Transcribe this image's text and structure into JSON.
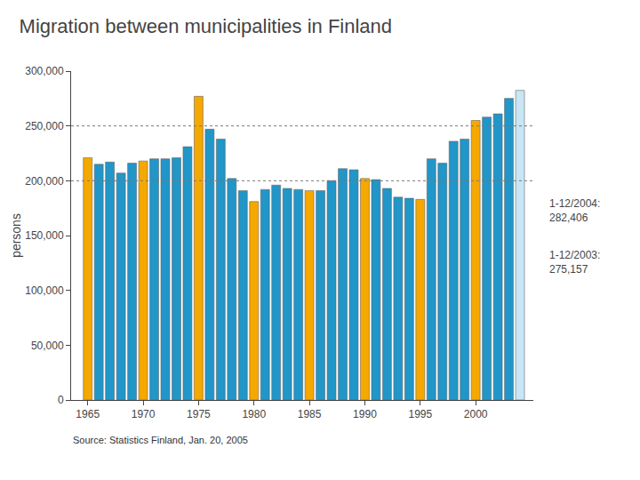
{
  "chart_data": {
    "type": "bar",
    "title": "Migration between municipalities in Finland",
    "ylabel": "persons",
    "source": "Source: Statistics Finland, Jan. 20, 2005",
    "annotations": [
      "1-12/2004:\n282,406",
      "1-12/2003:\n275,157"
    ],
    "x": [
      1965,
      1966,
      1967,
      1968,
      1969,
      1970,
      1971,
      1972,
      1973,
      1974,
      1975,
      1976,
      1977,
      1978,
      1979,
      1980,
      1981,
      1982,
      1983,
      1984,
      1985,
      1986,
      1987,
      1988,
      1989,
      1990,
      1991,
      1992,
      1993,
      1994,
      1995,
      1996,
      1997,
      1998,
      1999,
      2000,
      2001,
      2002,
      2003,
      2004
    ],
    "values": [
      221000,
      215000,
      217000,
      207000,
      216000,
      218000,
      220000,
      220000,
      221000,
      231000,
      277000,
      247000,
      238000,
      202000,
      191000,
      181000,
      192000,
      196000,
      193000,
      192000,
      191000,
      191000,
      200000,
      211000,
      210000,
      202000,
      201000,
      193000,
      185000,
      184000,
      183000,
      220000,
      216000,
      236000,
      238000,
      255000,
      258000,
      261000,
      275157,
      282406
    ],
    "colors": [
      "#f5a800",
      "#2196c8",
      "#2196c8",
      "#2196c8",
      "#2196c8",
      "#f5a800",
      "#2196c8",
      "#2196c8",
      "#2196c8",
      "#2196c8",
      "#f5a800",
      "#2196c8",
      "#2196c8",
      "#2196c8",
      "#2196c8",
      "#f5a800",
      "#2196c8",
      "#2196c8",
      "#2196c8",
      "#2196c8",
      "#f5a800",
      "#2196c8",
      "#2196c8",
      "#2196c8",
      "#2196c8",
      "#f5a800",
      "#2196c8",
      "#2196c8",
      "#2196c8",
      "#2196c8",
      "#f5a800",
      "#2196c8",
      "#2196c8",
      "#2196c8",
      "#2196c8",
      "#f5a800",
      "#2196c8",
      "#2196c8",
      "#2196c8",
      "#c8e6f5"
    ],
    "xlim": [
      1963.5,
      2005.2
    ],
    "xticks": [
      1965,
      1970,
      1975,
      1980,
      1985,
      1990,
      1995,
      2000
    ],
    "ylim": [
      0,
      300000
    ],
    "yticks": [
      0,
      {
        "value": 50000,
        "label": "50,000"
      },
      {
        "value": 100000,
        "label": "100,000"
      },
      {
        "value": 150000,
        "label": "150,000"
      },
      {
        "value": 200000,
        "label": "200,000"
      },
      {
        "value": 250000,
        "label": "250,000"
      },
      {
        "value": 300000,
        "label": "300,000"
      }
    ],
    "reference_lines": [
      250000,
      200000
    ],
    "grid": false
  }
}
